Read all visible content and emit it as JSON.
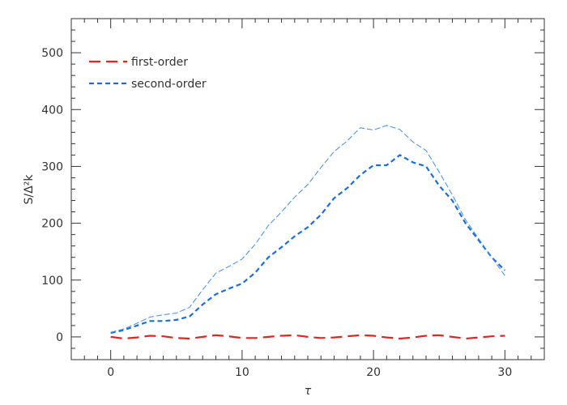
{
  "chart_data": {
    "type": "line",
    "xlabel": "τ",
    "ylabel": "S/Δ²k",
    "xlim": [
      -3,
      33
    ],
    "ylim": [
      -40,
      560
    ],
    "xticks": [
      0,
      10,
      20,
      30
    ],
    "yticks": [
      0,
      100,
      200,
      300,
      400,
      500
    ],
    "grid": false,
    "legend": {
      "placement": "top-left"
    },
    "series": [
      {
        "name": "first-order",
        "role": "legend",
        "color": "#e8231e",
        "style": "long-dash",
        "x": [
          0,
          1,
          2,
          3,
          4,
          5,
          6,
          7,
          8,
          9,
          10,
          11,
          12,
          13,
          14,
          15,
          16,
          17,
          18,
          19,
          20,
          21,
          22,
          23,
          24,
          25,
          26,
          27,
          28,
          29,
          30
        ],
        "y": [
          0,
          -3,
          -1,
          2,
          1,
          -2,
          -3,
          0,
          3,
          1,
          -2,
          -2,
          0,
          2,
          3,
          0,
          -2,
          -1,
          1,
          3,
          2,
          -1,
          -3,
          -1,
          2,
          3,
          0,
          -3,
          -1,
          1,
          2
        ]
      },
      {
        "name": "second-order",
        "role": "legend",
        "color": "#1a6de0",
        "style": "short-dash",
        "x": [
          0,
          1,
          2,
          3,
          4,
          5,
          6,
          7,
          8,
          9,
          10,
          11,
          12,
          13,
          14,
          15,
          16,
          17,
          18,
          19,
          20,
          21,
          22,
          23,
          24,
          25,
          26,
          27,
          28,
          29,
          30
        ],
        "y": [
          7,
          12,
          20,
          28,
          28,
          30,
          36,
          57,
          75,
          85,
          94,
          113,
          140,
          158,
          177,
          193,
          215,
          244,
          262,
          285,
          302,
          302,
          320,
          307,
          300,
          266,
          240,
          200,
          170,
          140,
          117
        ]
      },
      {
        "name": "",
        "role": "thin",
        "color": "#3f8ee8",
        "style": "thin-dash",
        "x": [
          0,
          1,
          2,
          3,
          4,
          5,
          6,
          7,
          8,
          9,
          10,
          11,
          12,
          13,
          14,
          15,
          16,
          17,
          18,
          19,
          20,
          21,
          22,
          23,
          24,
          25,
          26,
          27,
          28,
          29,
          30
        ],
        "y": [
          8,
          14,
          24,
          35,
          39,
          42,
          52,
          83,
          112,
          124,
          137,
          163,
          196,
          220,
          246,
          268,
          298,
          326,
          345,
          368,
          364,
          372,
          365,
          343,
          328,
          290,
          250,
          206,
          173,
          140,
          108
        ]
      }
    ]
  }
}
